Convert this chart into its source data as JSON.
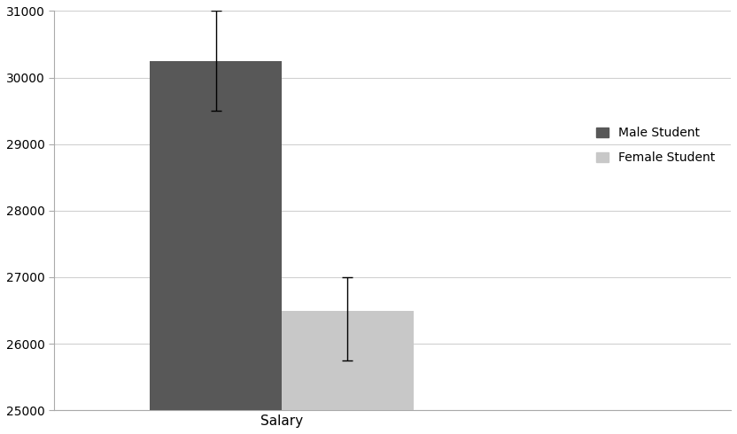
{
  "male_value": 30250,
  "female_value": 26500,
  "male_err_upper": 750,
  "male_err_lower": 750,
  "female_err_upper": 500,
  "female_err_lower": 750,
  "male_color": "#585858",
  "female_color": "#c8c8c8",
  "ylim": [
    25000,
    31000
  ],
  "yticks": [
    25000,
    26000,
    27000,
    28000,
    29000,
    30000,
    31000
  ],
  "xlabel": "Salary",
  "legend_male": "Male Student",
  "legend_female": "Female Student",
  "bar_width": 0.22,
  "background_color": "#ffffff",
  "grid_color": "#d0d0d0"
}
